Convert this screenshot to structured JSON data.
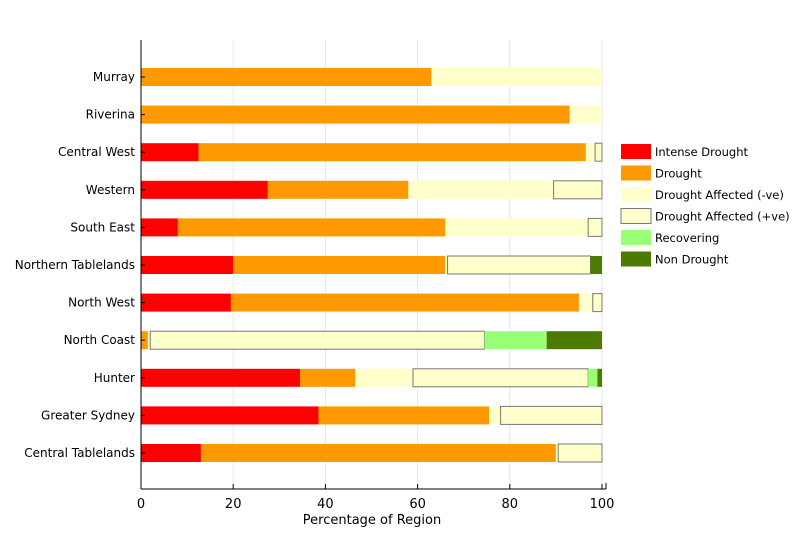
{
  "chart_data": {
    "type": "bar",
    "orientation": "horizontal",
    "stacked": true,
    "xlabel": "Percentage of Region",
    "xlim": [
      0,
      100
    ],
    "xticks": [
      0,
      20,
      40,
      60,
      80,
      100
    ],
    "grid": true,
    "legend_position": "right",
    "categories": [
      "Murray",
      "Riverina",
      "Central West",
      "Western",
      "South East",
      "Northern Tablelands",
      "North West",
      "North Coast",
      "Hunter",
      "Greater Sydney",
      "Central Tablelands"
    ],
    "series": [
      {
        "name": "Intense Drought",
        "color": "#ff0000",
        "values": [
          0,
          0,
          12.5,
          27.5,
          8,
          20,
          19.5,
          0,
          34.5,
          38.5,
          13
        ]
      },
      {
        "name": "Drought",
        "color": "#ff9900",
        "values": [
          63,
          93,
          84,
          30.5,
          58,
          46,
          75.5,
          1.5,
          12,
          37,
          77
        ]
      },
      {
        "name": "Drought Affected (-ve)",
        "color": "#ffffcc",
        "values": [
          37,
          7,
          2,
          31.5,
          31,
          0.5,
          3,
          0.5,
          12.5,
          2.5,
          0.5
        ]
      },
      {
        "name": "Drought Affected (+ve)",
        "color": "#ffffcc",
        "values": [
          0,
          0,
          1.5,
          10.5,
          3,
          31,
          2,
          72.5,
          38,
          22,
          9.5
        ]
      },
      {
        "name": "Recovering",
        "color": "#99ff77",
        "values": [
          0,
          0,
          0,
          0,
          0,
          0,
          0,
          13.5,
          2,
          0,
          0
        ]
      },
      {
        "name": "Non Drought",
        "color": "#4d7a00",
        "values": [
          0,
          0,
          0,
          0,
          0,
          2.5,
          0,
          12,
          1,
          0,
          0
        ]
      }
    ]
  }
}
